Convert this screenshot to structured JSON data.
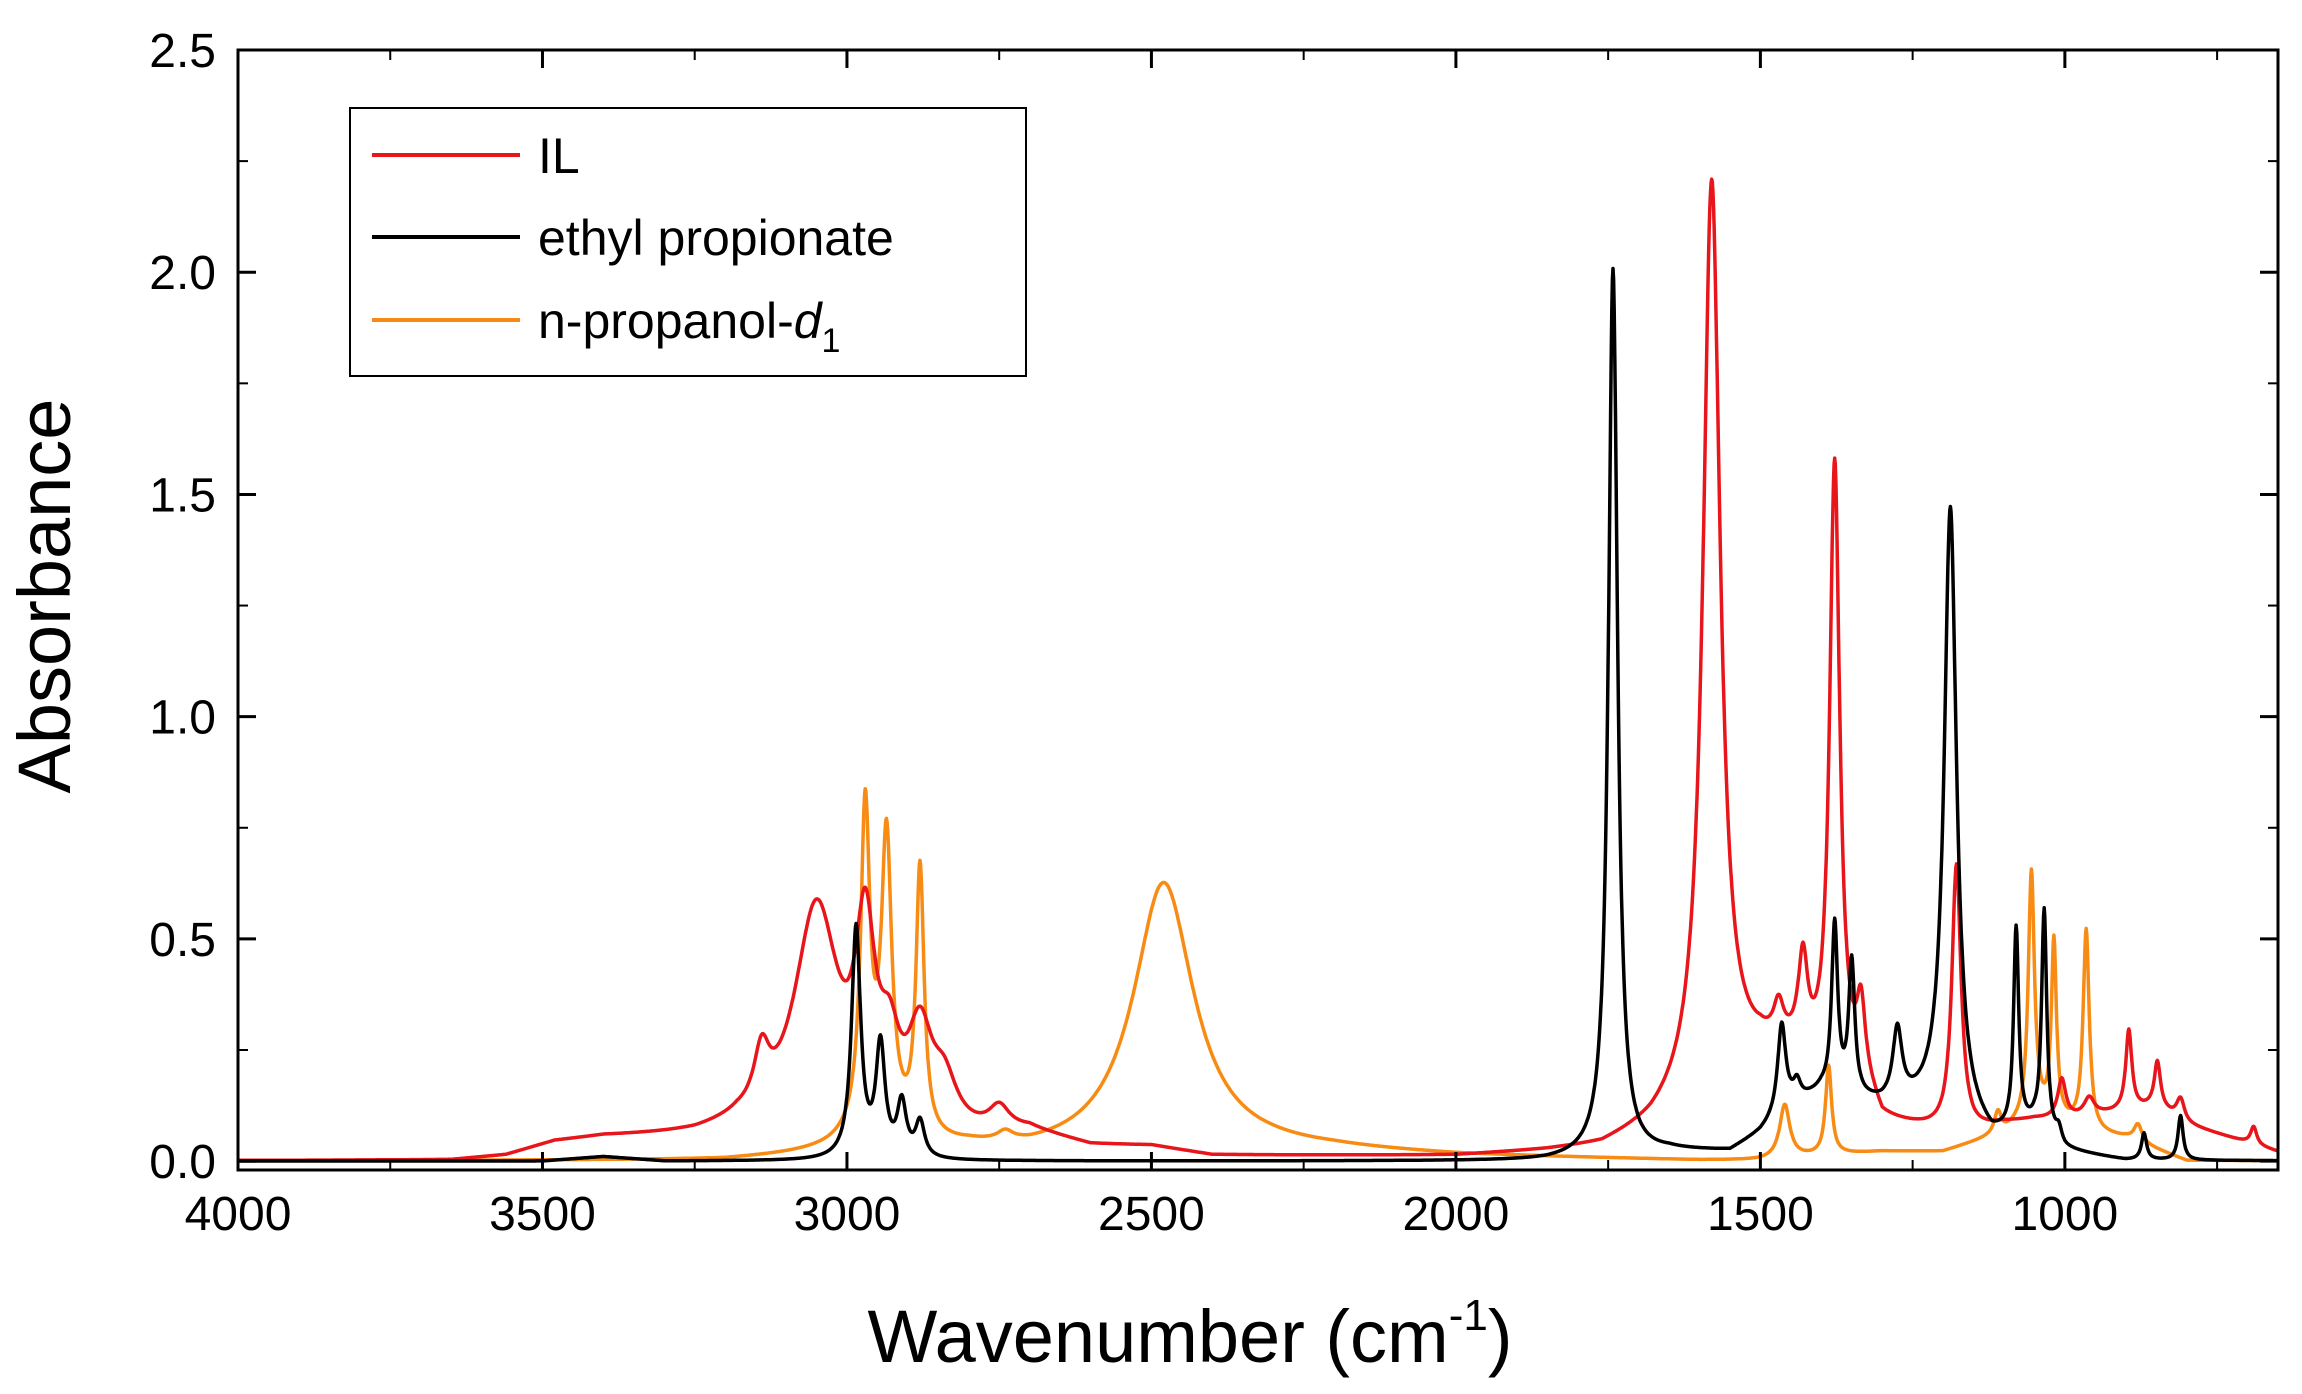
{
  "chart_data": {
    "type": "line",
    "title": "",
    "xlabel": "Wavenumber (cm",
    "xlabel_superscript": "-1",
    "xlabel_close": ")",
    "ylabel": "Absorbance",
    "xlim": [
      4000,
      650
    ],
    "ylim": [
      -0.02,
      2.5
    ],
    "x_ticks": [
      4000,
      3500,
      3000,
      2500,
      2000,
      1500,
      1000
    ],
    "x_tick_labels": [
      "4000",
      "3500",
      "3000",
      "2500",
      "2000",
      "1500",
      "1000"
    ],
    "y_ticks": [
      0.0,
      0.5,
      1.0,
      1.5,
      2.0,
      2.5
    ],
    "y_tick_labels": [
      "0.0",
      "0.5",
      "1.0",
      "1.5",
      "2.0",
      "2.5"
    ],
    "grid": false,
    "legend_position": "top-left",
    "series": [
      {
        "name": "IL",
        "legend_label": "IL",
        "legend_subscript": "",
        "color": "#e8151b",
        "baseline": [
          [
            4000,
            0.0
          ],
          [
            3650,
            0.0
          ],
          [
            3560,
            0.01
          ],
          [
            3480,
            0.04
          ],
          [
            3400,
            0.05
          ],
          [
            3250,
            0.05
          ],
          [
            3180,
            0.06
          ],
          [
            3000,
            0.02
          ],
          [
            2900,
            0.02
          ],
          [
            2700,
            0.06
          ],
          [
            2600,
            0.03
          ],
          [
            2500,
            0.03
          ],
          [
            2400,
            0.01
          ],
          [
            2000,
            0.01
          ],
          [
            1850,
            0.02
          ],
          [
            1760,
            0.03
          ],
          [
            1680,
            0.07
          ],
          [
            1620,
            0.12
          ],
          [
            1500,
            0.22
          ],
          [
            1440,
            0.22
          ],
          [
            1400,
            0.18
          ],
          [
            1330,
            0.16
          ],
          [
            1300,
            0.08
          ],
          [
            1250,
            0.07
          ],
          [
            1200,
            0.06
          ],
          [
            1150,
            0.06
          ],
          [
            1100,
            0.08
          ],
          [
            1050,
            0.09
          ],
          [
            1000,
            0.09
          ],
          [
            950,
            0.1
          ],
          [
            900,
            0.11
          ],
          [
            850,
            0.12
          ],
          [
            800,
            0.08
          ],
          [
            750,
            0.06
          ],
          [
            700,
            0.04
          ],
          [
            650,
            0.02
          ]
        ],
        "peaks": [
          [
            3140,
            0.12,
            15
          ],
          [
            3050,
            0.52,
            45
          ],
          [
            2970,
            0.42,
            20
          ],
          [
            2930,
            0.15,
            20
          ],
          [
            2880,
            0.22,
            25
          ],
          [
            2840,
            0.1,
            25
          ],
          [
            2750,
            0.05,
            20
          ],
          [
            1580,
            2.05,
            17
          ],
          [
            1470,
            0.08,
            10
          ],
          [
            1430,
            0.2,
            9
          ],
          [
            1378,
            1.38,
            10
          ],
          [
            1335,
            0.15,
            8
          ],
          [
            1178,
            0.6,
            9
          ],
          [
            1005,
            0.09,
            8
          ],
          [
            960,
            0.04,
            10
          ],
          [
            895,
            0.18,
            6
          ],
          [
            848,
            0.1,
            6
          ],
          [
            810,
            0.05,
            8
          ],
          [
            690,
            0.04,
            6
          ]
        ]
      },
      {
        "name": "ethyl propionate",
        "legend_label": "ethyl propionate",
        "legend_subscript": "",
        "color": "#000000",
        "baseline": [
          [
            4000,
            0.0
          ],
          [
            3500,
            0.0
          ],
          [
            3400,
            0.01
          ],
          [
            3300,
            0.0
          ],
          [
            1850,
            0.0
          ],
          [
            1700,
            0.01
          ],
          [
            1650,
            0.02
          ],
          [
            1550,
            0.02
          ],
          [
            1500,
            0.06
          ],
          [
            1450,
            0.12
          ],
          [
            1400,
            0.15
          ],
          [
            1300,
            0.12
          ],
          [
            1230,
            0.12
          ],
          [
            1200,
            0.12
          ],
          [
            1120,
            0.04
          ],
          [
            1050,
            0.07
          ],
          [
            1000,
            0.02
          ],
          [
            900,
            0.0
          ],
          [
            650,
            0.0
          ]
        ],
        "peaks": [
          [
            2985,
            0.52,
            9
          ],
          [
            2945,
            0.25,
            9
          ],
          [
            2910,
            0.12,
            9
          ],
          [
            2880,
            0.08,
            9
          ],
          [
            1742,
            2.0,
            9
          ],
          [
            1465,
            0.2,
            8
          ],
          [
            1440,
            0.04,
            7
          ],
          [
            1378,
            0.38,
            6
          ],
          [
            1350,
            0.3,
            6
          ],
          [
            1275,
            0.16,
            9
          ],
          [
            1188,
            1.36,
            12
          ],
          [
            1080,
            0.45,
            5
          ],
          [
            1034,
            0.5,
            5
          ],
          [
            1010,
            0.03,
            6
          ],
          [
            870,
            0.06,
            5
          ],
          [
            810,
            0.1,
            5
          ]
        ]
      },
      {
        "name": "n-propanol-d1",
        "legend_label": "n-propanol-",
        "legend_label_italic": "d",
        "legend_subscript": "1",
        "color": "#f78b14",
        "baseline": [
          [
            4000,
            0.0
          ],
          [
            3200,
            0.0
          ],
          [
            3050,
            0.01
          ],
          [
            2800,
            0.02
          ],
          [
            2700,
            0.01
          ],
          [
            2300,
            0.02
          ],
          [
            2200,
            0.02
          ],
          [
            2000,
            0.01
          ],
          [
            1600,
            0.0
          ],
          [
            1500,
            0.0
          ],
          [
            1300,
            0.02
          ],
          [
            1200,
            0.02
          ],
          [
            1100,
            0.06
          ],
          [
            1050,
            0.1
          ],
          [
            950,
            0.06
          ],
          [
            900,
            0.05
          ],
          [
            800,
            0.0
          ],
          [
            650,
            0.0
          ]
        ],
        "peaks": [
          [
            2970,
            0.7,
            9
          ],
          [
            2935,
            0.62,
            10
          ],
          [
            2880,
            0.6,
            8
          ],
          [
            2950,
            0.08,
            40
          ],
          [
            2740,
            0.02,
            15
          ],
          [
            2480,
            0.61,
            60
          ],
          [
            1460,
            0.12,
            10
          ],
          [
            1388,
            0.2,
            6
          ],
          [
            1110,
            0.05,
            7
          ],
          [
            1055,
            0.55,
            6
          ],
          [
            1018,
            0.4,
            5
          ],
          [
            965,
            0.45,
            6
          ],
          [
            880,
            0.04,
            8
          ]
        ]
      }
    ]
  }
}
